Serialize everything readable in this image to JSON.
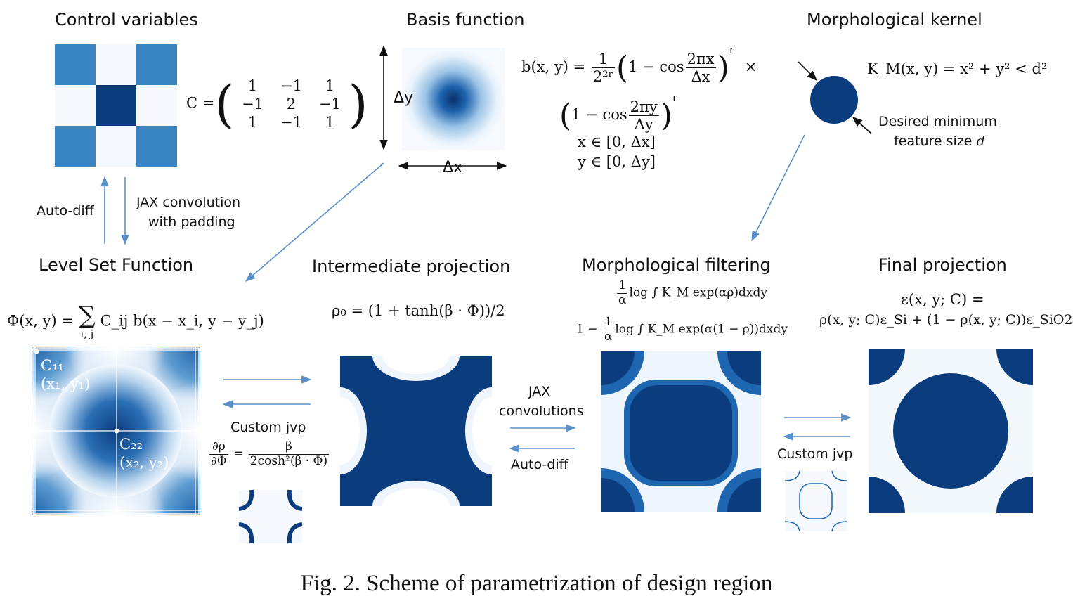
{
  "titles": {
    "control": "Control variables",
    "basis": "Basis function",
    "kernel": "Morphological kernel",
    "level_set": "Level Set Function",
    "intermediate": "Intermediate projection",
    "morph_filter": "Morphological filtering",
    "final": "Final projection"
  },
  "labels": {
    "auto_diff_1": "Auto-diff",
    "jax_conv_1": "JAX convolution",
    "jax_conv_2": "with padding",
    "delta_y": "Δy",
    "delta_x": "Δx",
    "desired_1": "Desired minimum",
    "desired_2": "feature size",
    "desired_d": "d",
    "custom_jvp_1": "Custom jvp",
    "jax_convs_1": "JAX",
    "jax_convs_2": "convolutions",
    "auto_diff_2": "Auto-diff",
    "custom_jvp_2": "Custom jvp",
    "c11": "C₁₁",
    "x1y1": "(x₁, y₁)",
    "c22": "C₂₂",
    "x2y2": "(x₂, y₂)"
  },
  "matrix": {
    "lhs": "C =",
    "rows": [
      [
        "1",
        "−1",
        "1"
      ],
      [
        "−1",
        "2",
        "−1"
      ],
      [
        "1",
        "−1",
        "1"
      ]
    ]
  },
  "equations": {
    "basis_lhs": "b(x, y) =",
    "basis_frac_num": "1",
    "basis_frac_den": "2²ʳ",
    "one_minus_cos": "1 − cos",
    "frac_x_num": "2πx",
    "frac_x_den": "Δx",
    "frac_y_num": "2πy",
    "frac_y_den": "Δy",
    "pow_r": "r",
    "times": "×",
    "x_range": "x ∈ [0, Δx]",
    "y_range": "y ∈ [0, Δy]",
    "kernel_eq": "K_M(x, y) = x² + y² < d²",
    "level_set_eq": "Φ(x, y) = ∑ C_ij b(x − x_i, y − y_j)",
    "level_set_lhs": "Φ(x, y) =",
    "level_set_sum": "∑",
    "level_set_sub": "i, j",
    "level_set_rhs": "C_ij b(x − x_i, y − y_j)",
    "proj_eq": "ρ₀ = (1 + tanh(β · Φ))/2",
    "jvp_num": "∂ρ",
    "jvp_den": "∂Φ",
    "jvp_eq": "=",
    "jvp_rhs_num": "β",
    "jvp_rhs_den": "2cosh²(β · Φ)",
    "morph_a_num": "1",
    "morph_a_den": "α",
    "morph_1": "log ∫ K_M exp(αρ)dxdy",
    "morph_2_pre": "1 −",
    "morph_2": "log ∫ K_M exp(α(1 − ρ))dxdy",
    "final_1": "ε(x, y; C) =",
    "final_2": "ρ(x, y; C)ε_Si + (1 − ρ(x, y; C))ε_SiO2"
  },
  "caption": "Fig. 2.  Scheme of parametrization of design region",
  "colors": {
    "dark": "#0b3d7e",
    "mid": "#3a84c2",
    "light": "#f2f7fd",
    "arrow": "#5a8fcb"
  }
}
